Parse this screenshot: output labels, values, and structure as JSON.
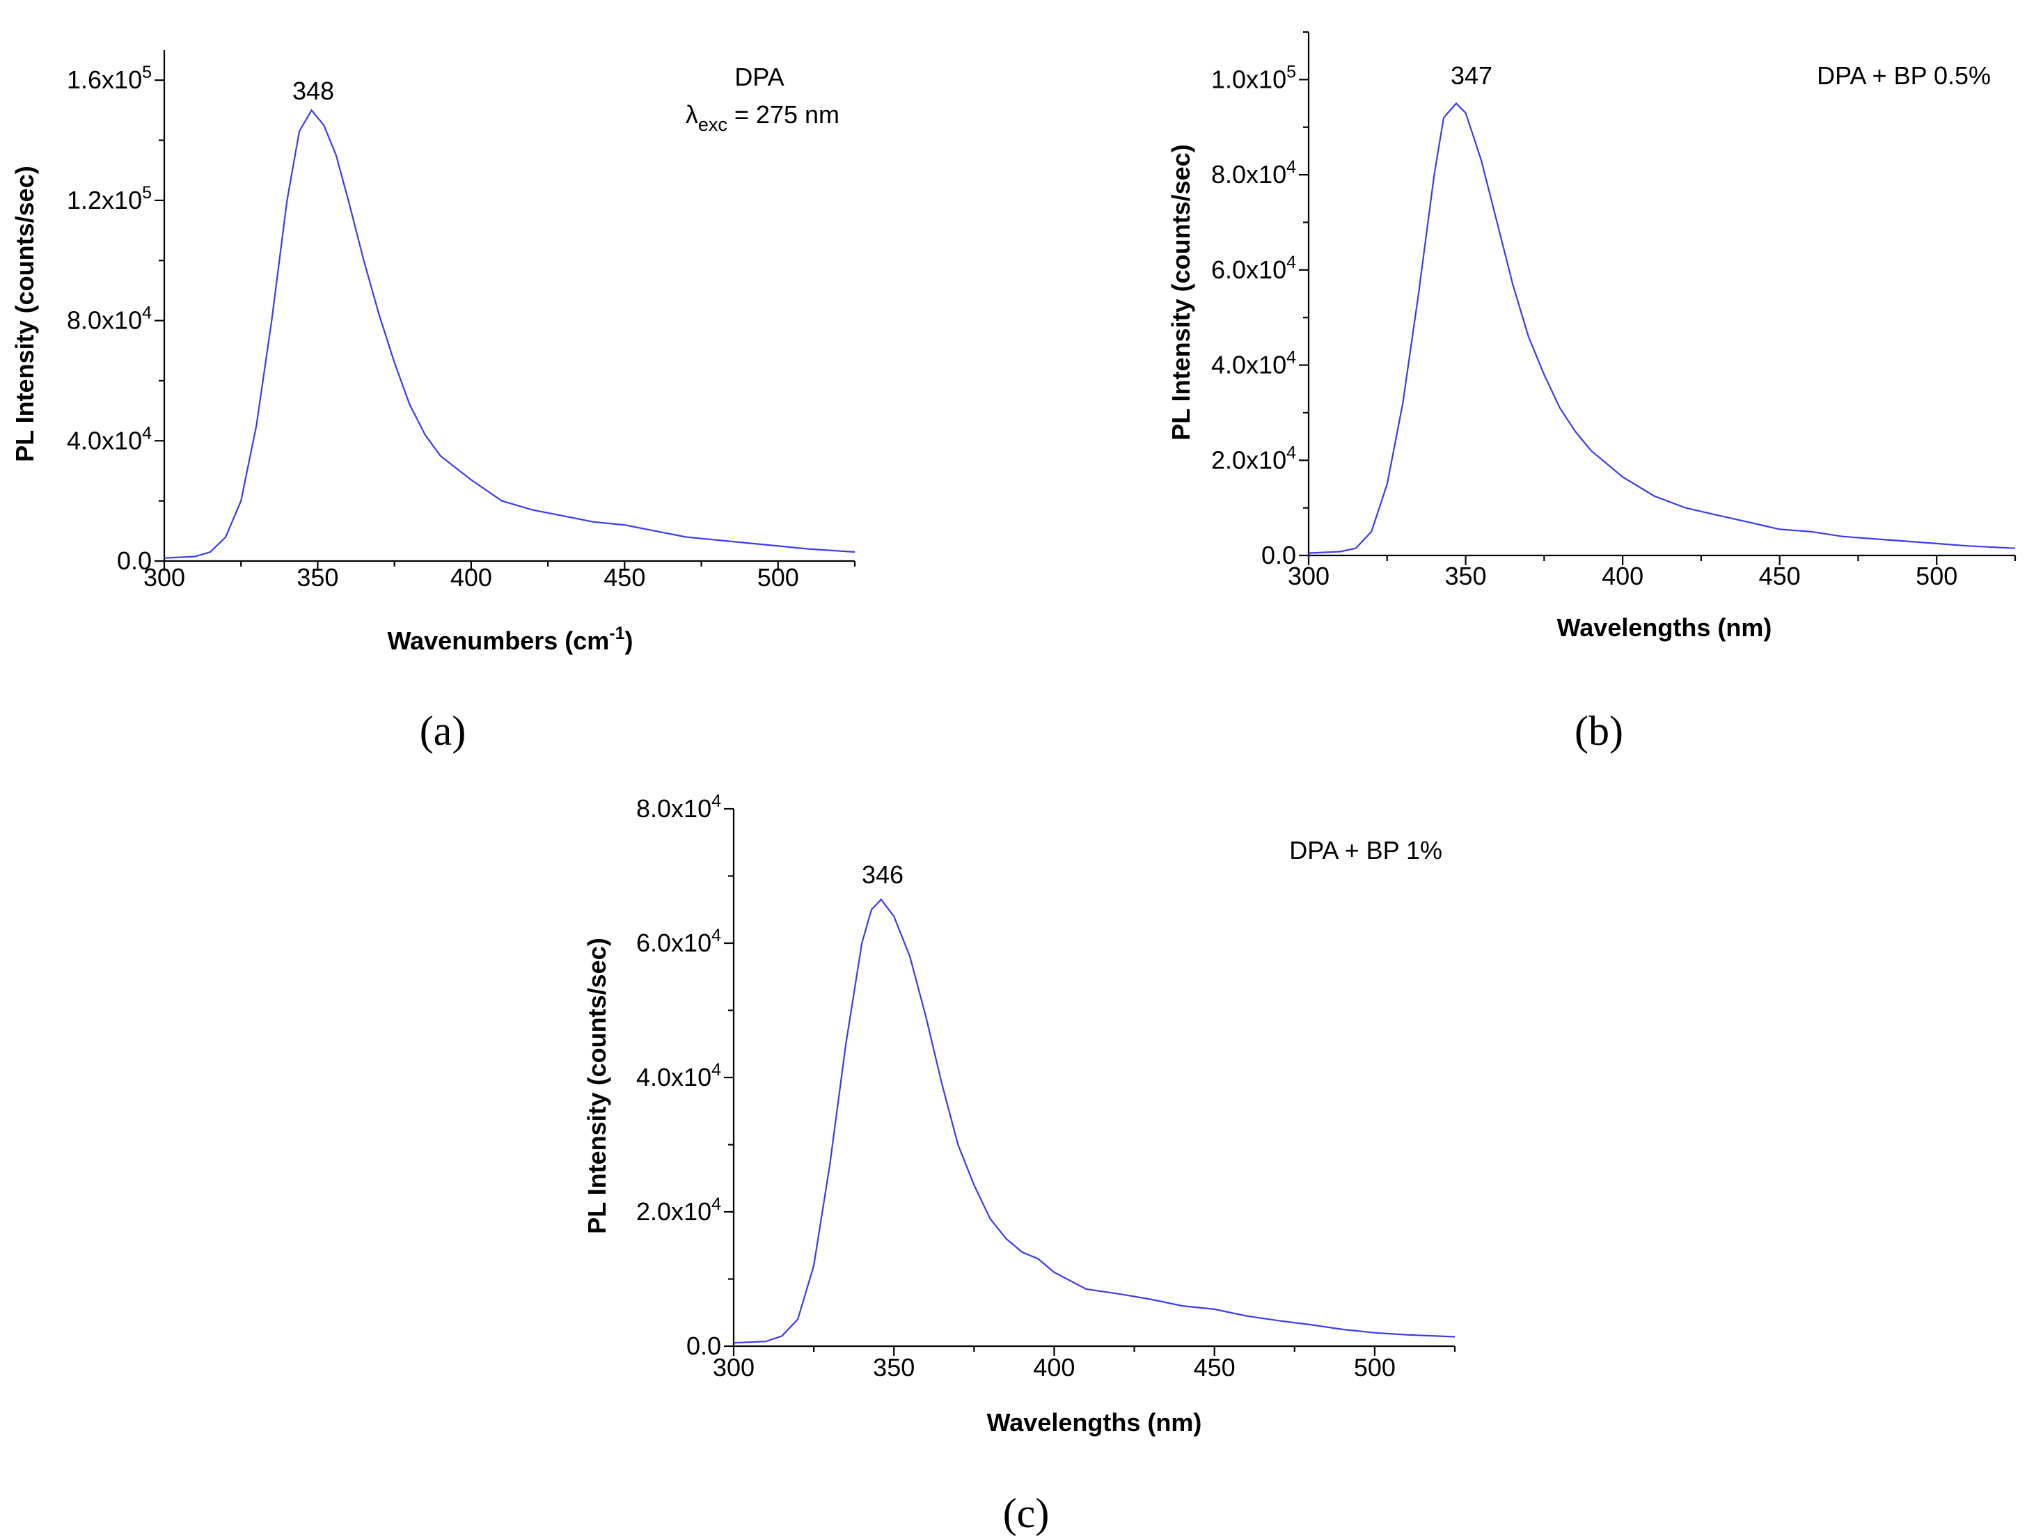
{
  "panels": [
    {
      "id": "a",
      "panel_label": "(a)",
      "legend": [
        "DPA"
      ],
      "excitation": {
        "lambda": "λ",
        "sub": "exc",
        "rest": " = 275 nm"
      },
      "peak_label": "348",
      "xlabel_main": "Wavenumbers (cm",
      "xlabel_sup": "-1",
      "xlabel_end": ")",
      "ylabel": "PL Intensity (counts/sec)",
      "xticks": [
        "300",
        "350",
        "400",
        "450",
        "500"
      ],
      "yticks": [
        {
          "mant": "0.0",
          "exp": ""
        },
        {
          "mant": "4.0x10",
          "exp": "4"
        },
        {
          "mant": "8.0x10",
          "exp": "4"
        },
        {
          "mant": "1.2x10",
          "exp": "5"
        },
        {
          "mant": "1.6x10",
          "exp": "5"
        }
      ]
    },
    {
      "id": "b",
      "panel_label": "(b)",
      "legend": [
        "DPA + BP 0.5%"
      ],
      "peak_label": "347",
      "xlabel_main": "Wavelengths (nm)",
      "ylabel": "PL Intensity (counts/sec)",
      "xticks": [
        "300",
        "350",
        "400",
        "450",
        "500"
      ],
      "yticks": [
        {
          "mant": "0.0",
          "exp": ""
        },
        {
          "mant": "2.0x10",
          "exp": "4"
        },
        {
          "mant": "4.0x10",
          "exp": "4"
        },
        {
          "mant": "6.0x10",
          "exp": "4"
        },
        {
          "mant": "8.0x10",
          "exp": "4"
        },
        {
          "mant": "1.0x10",
          "exp": "5"
        }
      ]
    },
    {
      "id": "c",
      "panel_label": "(c)",
      "legend": [
        "DPA + BP 1%"
      ],
      "peak_label": "346",
      "xlabel_main": "Wavelengths (nm)",
      "ylabel": "PL Intensity (counts/sec)",
      "xticks": [
        "300",
        "350",
        "400",
        "450",
        "500"
      ],
      "yticks": [
        {
          "mant": "0.0",
          "exp": ""
        },
        {
          "mant": "2.0x10",
          "exp": "4"
        },
        {
          "mant": "4.0x10",
          "exp": "4"
        },
        {
          "mant": "6.0x10",
          "exp": "4"
        },
        {
          "mant": "8.0x10",
          "exp": "4"
        }
      ]
    }
  ],
  "chart_data": [
    {
      "type": "line",
      "title": "DPA, λexc = 275 nm",
      "xlabel": "Wavenumbers (cm-1)",
      "ylabel": "PL Intensity (counts/sec)",
      "xlim": [
        300,
        525
      ],
      "ylim": [
        0,
        170000
      ],
      "series": [
        {
          "name": "DPA",
          "color": "#3b3bea",
          "x": [
            300,
            310,
            315,
            320,
            325,
            330,
            335,
            340,
            344,
            348,
            352,
            356,
            360,
            365,
            370,
            375,
            380,
            385,
            390,
            395,
            400,
            410,
            420,
            430,
            440,
            450,
            460,
            470,
            480,
            490,
            500,
            510,
            525
          ],
          "y": [
            1000,
            1500,
            3000,
            8000,
            20000,
            45000,
            80000,
            120000,
            143000,
            150000,
            145000,
            135000,
            120000,
            100000,
            82000,
            66000,
            52000,
            42000,
            35000,
            31000,
            27000,
            20000,
            17000,
            15000,
            13000,
            12000,
            10000,
            8000,
            7000,
            6000,
            5000,
            4000,
            3000
          ]
        }
      ],
      "annotations": [
        "348"
      ]
    },
    {
      "type": "line",
      "title": "DPA + BP 0.5%",
      "xlabel": "Wavelengths (nm)",
      "ylabel": "PL Intensity (counts/sec)",
      "xlim": [
        300,
        525
      ],
      "ylim": [
        0,
        110000
      ],
      "series": [
        {
          "name": "DPA + BP 0.5%",
          "color": "#3b3bea",
          "x": [
            300,
            310,
            315,
            320,
            325,
            330,
            335,
            340,
            343,
            347,
            350,
            355,
            360,
            365,
            370,
            375,
            380,
            385,
            390,
            400,
            410,
            420,
            430,
            440,
            450,
            460,
            470,
            480,
            490,
            500,
            510,
            525
          ],
          "y": [
            500,
            800,
            1500,
            5000,
            15000,
            32000,
            55000,
            80000,
            92000,
            95000,
            93000,
            83000,
            70000,
            57000,
            46000,
            38000,
            31000,
            26000,
            22000,
            16500,
            12500,
            10000,
            8500,
            7000,
            5500,
            5000,
            4000,
            3500,
            3000,
            2500,
            2000,
            1500
          ]
        }
      ],
      "annotations": [
        "347"
      ]
    },
    {
      "type": "line",
      "title": "DPA + BP 1%",
      "xlabel": "Wavelengths (nm)",
      "ylabel": "PL Intensity (counts/sec)",
      "xlim": [
        300,
        525
      ],
      "ylim": [
        0,
        80000
      ],
      "series": [
        {
          "name": "DPA + BP 1%",
          "color": "#3b3bea",
          "x": [
            300,
            310,
            315,
            320,
            325,
            330,
            335,
            340,
            343,
            346,
            350,
            355,
            360,
            365,
            370,
            375,
            380,
            385,
            390,
            395,
            400,
            410,
            420,
            430,
            440,
            450,
            460,
            470,
            480,
            490,
            500,
            510,
            525
          ],
          "y": [
            500,
            700,
            1500,
            4000,
            12000,
            27000,
            45000,
            60000,
            65000,
            66500,
            64000,
            58000,
            49000,
            39000,
            30000,
            24000,
            19000,
            16000,
            14000,
            13000,
            11000,
            8500,
            7800,
            7000,
            6000,
            5500,
            4500,
            3800,
            3200,
            2500,
            2000,
            1700,
            1400
          ]
        }
      ],
      "annotations": [
        "346"
      ]
    }
  ]
}
